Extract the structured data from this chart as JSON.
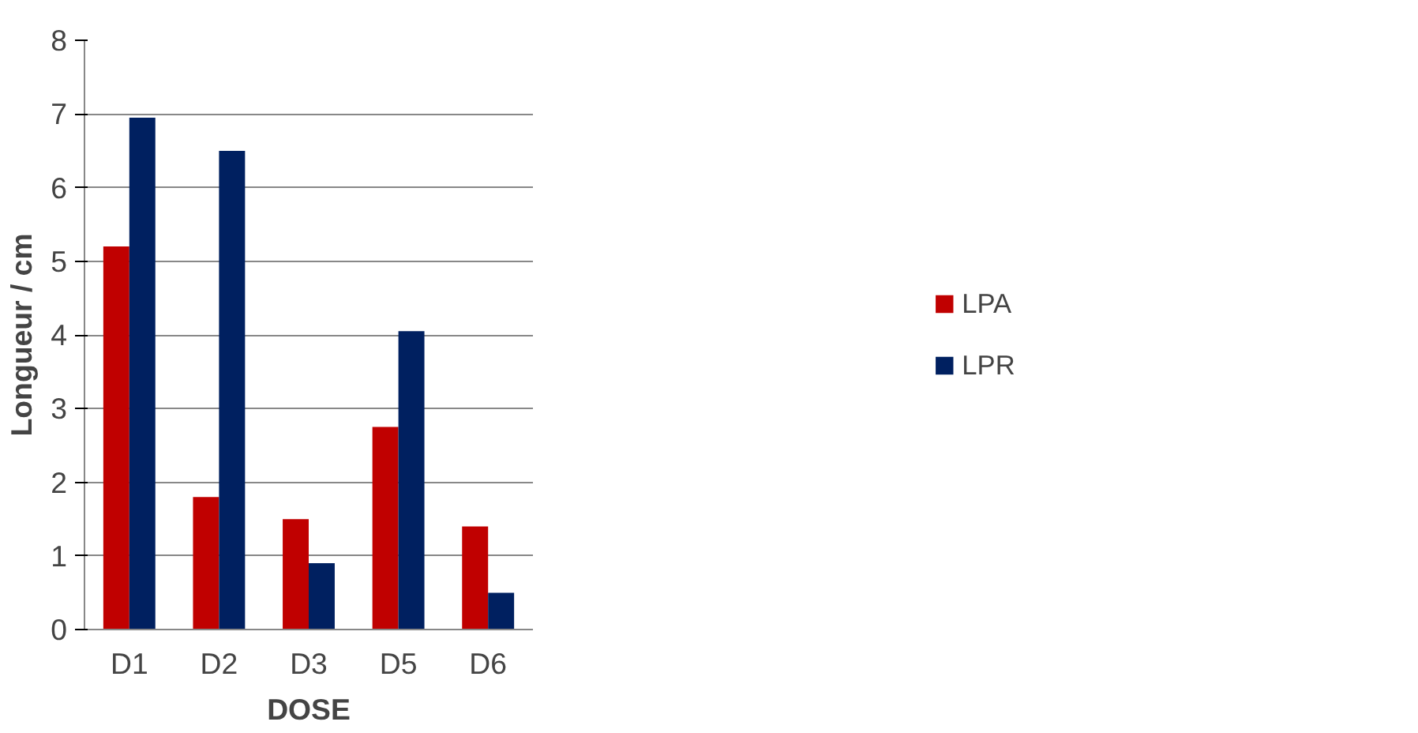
{
  "chart_data": {
    "type": "bar",
    "xlabel": "DOSE",
    "ylabel": "Longueur / cm",
    "categories": [
      "D1",
      "D2",
      "D3",
      "D5",
      "D6"
    ],
    "series": [
      {
        "name": "LPA",
        "color": "#c00000",
        "values": [
          5.2,
          1.8,
          1.5,
          2.75,
          1.4
        ]
      },
      {
        "name": "LPR",
        "color": "#002060",
        "values": [
          6.95,
          6.5,
          0.9,
          4.05,
          0.5
        ]
      }
    ],
    "ylim": [
      0,
      8
    ],
    "yticks": [
      0,
      1,
      2,
      3,
      4,
      5,
      6,
      7,
      8
    ],
    "grid": "y",
    "legend": "right"
  }
}
